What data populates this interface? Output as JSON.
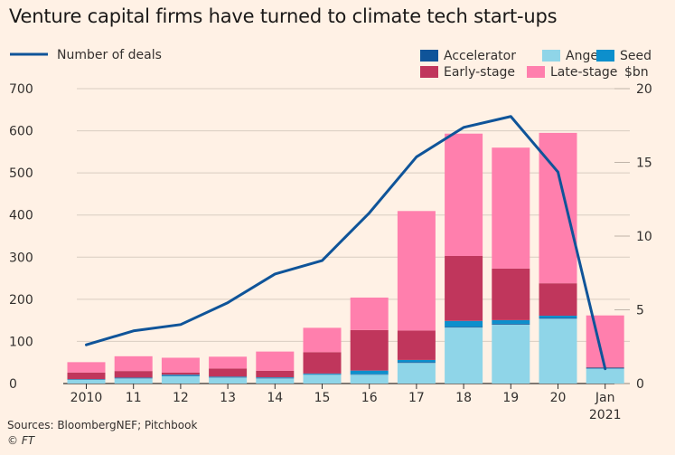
{
  "title": "Venture capital firms have turned to climate tech start-ups",
  "source": "Sources: BloombergNEF; Pitchbook",
  "credit": "© FT",
  "colors": {
    "background": "#fff1e5",
    "accelerator": "#0f5499",
    "angel": "#8fd5e8",
    "seed": "#0d8fcc",
    "early": "#c0365c",
    "late": "#ff7fad",
    "line": "#0f5499"
  },
  "chart_data": {
    "type": "bar+line",
    "categories": [
      "2010",
      "11",
      "12",
      "13",
      "14",
      "15",
      "16",
      "17",
      "18",
      "19",
      "20",
      "Jan\n2021"
    ],
    "legend": {
      "line": "Number of deals",
      "bars": [
        "Accelerator",
        "Angel",
        "Seed",
        "Early-stage",
        "Late-stage"
      ],
      "unit": "$bn"
    },
    "left_axis": {
      "ticks": [
        0,
        100,
        200,
        300,
        400,
        500,
        600,
        700
      ],
      "ylim": [
        0,
        700
      ]
    },
    "right_axis": {
      "ticks": [
        0,
        5,
        10,
        15,
        20
      ],
      "ylim": [
        0,
        20
      ]
    },
    "series": [
      {
        "name": "Accelerator",
        "axis": "right",
        "values": [
          0.02,
          0.02,
          0.02,
          0.02,
          0.02,
          0.03,
          0.03,
          0.05,
          0.05,
          0.05,
          0.05,
          0.02
        ]
      },
      {
        "name": "Angel",
        "axis": "right",
        "values": [
          0.25,
          0.35,
          0.5,
          0.4,
          0.35,
          0.6,
          0.6,
          1.4,
          3.8,
          4.0,
          4.4,
          1.0
        ]
      },
      {
        "name": "Seed",
        "axis": "right",
        "values": [
          0.03,
          0.03,
          0.08,
          0.05,
          0.05,
          0.05,
          0.25,
          0.15,
          0.4,
          0.25,
          0.15,
          0.05
        ]
      },
      {
        "name": "Early-stage",
        "axis": "right",
        "values": [
          0.45,
          0.45,
          0.15,
          0.55,
          0.45,
          1.45,
          2.75,
          2.0,
          4.4,
          3.5,
          2.2,
          0.05
        ]
      },
      {
        "name": "Late-stage",
        "axis": "right",
        "values": [
          0.7,
          1.0,
          1.0,
          0.8,
          1.3,
          1.65,
          2.2,
          8.1,
          8.3,
          8.2,
          10.2,
          3.5
        ]
      },
      {
        "name": "Number of deals",
        "axis": "left",
        "type": "line",
        "values": [
          92,
          125,
          140,
          192,
          260,
          292,
          405,
          538,
          608,
          634,
          502,
          35
        ]
      }
    ]
  }
}
